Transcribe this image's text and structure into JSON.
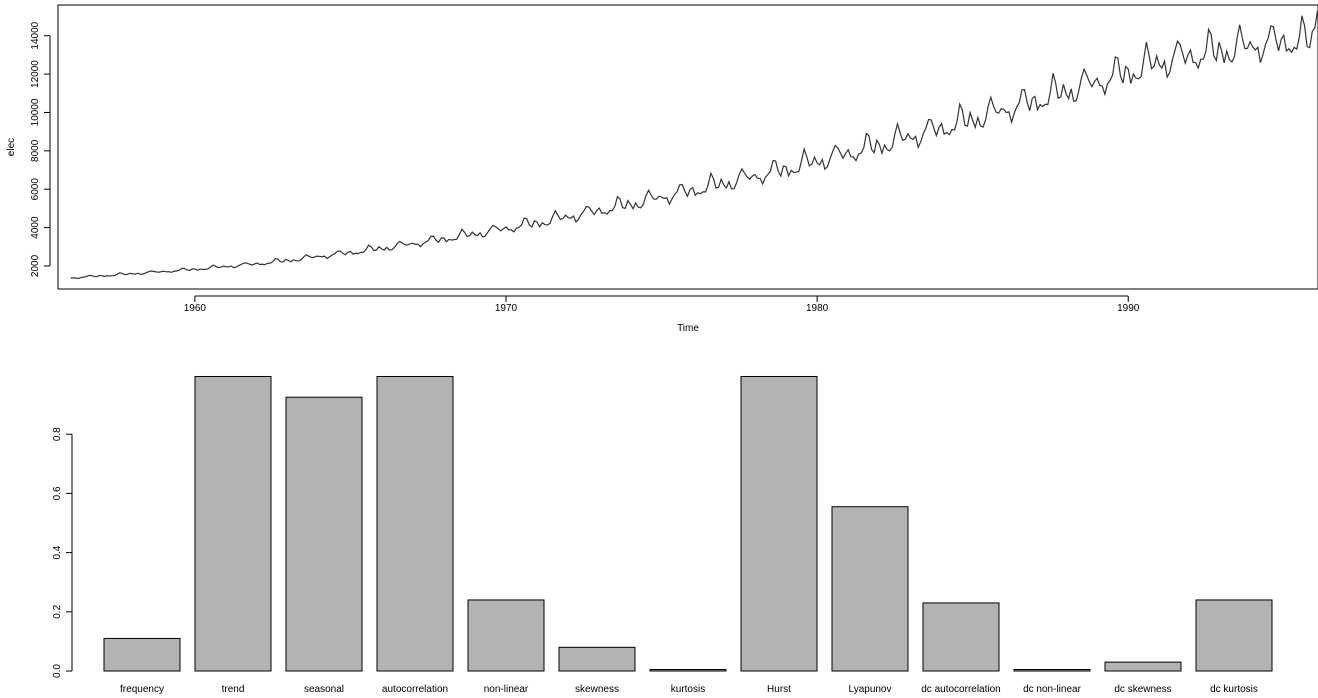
{
  "chart_data": [
    {
      "type": "line",
      "title": "",
      "xlabel": "Time",
      "ylabel": "elec",
      "xlim": [
        1955.6,
        1996.1
      ],
      "ylim": [
        800,
        15600
      ],
      "xticks": [
        1960,
        1970,
        1980,
        1990
      ],
      "yticks": [
        2000,
        4000,
        6000,
        8000,
        10000,
        12000,
        14000
      ],
      "grid": false,
      "color": "#333333",
      "start": 1956.0,
      "frequency": 12,
      "annual_level": [
        1370,
        1480,
        1590,
        1700,
        1820,
        1960,
        2100,
        2280,
        2480,
        2680,
        2900,
        3130,
        3380,
        3640,
        3920,
        4210,
        4520,
        4840,
        5180,
        5530,
        5880,
        6240,
        6610,
        6990,
        7390,
        7800,
        8220,
        8650,
        9100,
        9560,
        10030,
        10510,
        11000,
        11500,
        12000,
        12500,
        12850,
        13100,
        13350,
        13600
      ],
      "annual_amplitude": [
        80,
        90,
        100,
        110,
        130,
        150,
        170,
        190,
        220,
        250,
        280,
        310,
        340,
        380,
        420,
        460,
        500,
        540,
        580,
        620,
        660,
        700,
        740,
        780,
        820,
        860,
        900,
        940,
        980,
        1020,
        1060,
        1100,
        1150,
        1200,
        1250,
        1300,
        1300,
        1300,
        1300,
        1300
      ],
      "seasonal_pattern": [
        0.15,
        -0.25,
        -0.05,
        -0.45,
        -0.3,
        -0.1,
        0.35,
        0.95,
        0.65,
        0.05,
        -0.15,
        0.3
      ],
      "final_values": [
        14400,
        15300,
        14600
      ]
    },
    {
      "type": "bar",
      "title": "",
      "xlabel": "",
      "ylabel": "",
      "ylim": [
        0,
        1.0
      ],
      "yticks": [
        0.0,
        0.2,
        0.4,
        0.6,
        0.8
      ],
      "bar_color": "#b3b3b3",
      "categories": [
        "frequency",
        "trend",
        "seasonal",
        "autocorrelation",
        "non-linear",
        "skewness",
        "kurtosis",
        "Hurst",
        "Lyapunov",
        "dc autocorrelation",
        "dc non-linear",
        "dc skewness",
        "dc kurtosis"
      ],
      "values": [
        0.11,
        0.995,
        0.925,
        0.995,
        0.24,
        0.08,
        0.005,
        0.995,
        0.555,
        0.23,
        0.005,
        0.03,
        0.24
      ]
    }
  ]
}
